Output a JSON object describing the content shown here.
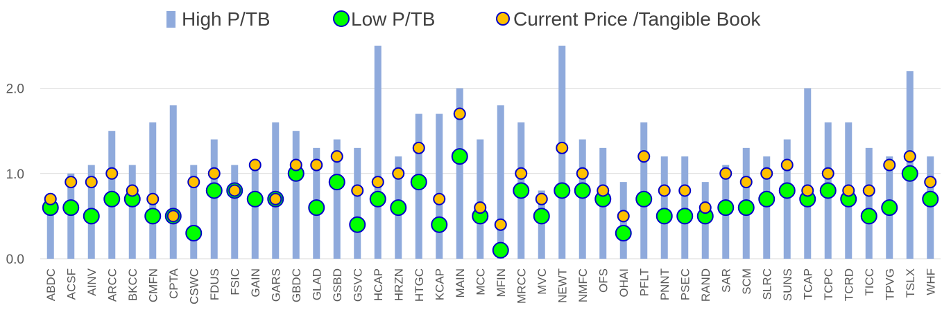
{
  "chart_data": {
    "type": "bar",
    "title": "",
    "xlabel": "",
    "ylabel": "",
    "ylim": [
      0,
      2.5
    ],
    "yticks": [
      "0.0",
      "1.0",
      "2.0"
    ],
    "grid": true,
    "legend": "top",
    "colors": {
      "high_bar": "#8faadc",
      "low_marker": "#00ff00",
      "low_marker_edge": "#0000c8",
      "current_marker": "#ffc000",
      "current_marker_edge": "#0000c8",
      "grid": "#d9d9d9"
    },
    "categories": [
      "ABDC",
      "ACSF",
      "AINV",
      "ARCC",
      "BKCC",
      "CMFN",
      "CPTA",
      "CSWC",
      "FDUS",
      "FSIC",
      "GAIN",
      "GARS",
      "GBDC",
      "GLAD",
      "GSBD",
      "GSVC",
      "HCAP",
      "HRZN",
      "HTGC",
      "KCAP",
      "MAIN",
      "MCC",
      "MFIN",
      "MRCC",
      "MVC",
      "NEWT",
      "NMFC",
      "OFS",
      "OHAI",
      "PFLT",
      "PNNT",
      "PSEC",
      "RAND",
      "SAR",
      "SCM",
      "SLRC",
      "SUNS",
      "TCAP",
      "TCPC",
      "TCRD",
      "TICC",
      "TPVG",
      "TSLX",
      "WHF"
    ],
    "series": [
      {
        "name": "High P/TB",
        "kind": "bar",
        "values": [
          0.7,
          1.0,
          1.1,
          1.5,
          1.1,
          1.6,
          1.8,
          1.1,
          1.4,
          1.1,
          1.1,
          1.6,
          1.5,
          1.3,
          1.4,
          1.3,
          2.5,
          1.2,
          1.7,
          1.7,
          2.0,
          1.4,
          1.8,
          1.6,
          0.8,
          2.5,
          1.4,
          1.3,
          0.9,
          1.6,
          1.2,
          1.2,
          0.9,
          1.1,
          1.3,
          1.2,
          1.4,
          2.0,
          1.6,
          1.6,
          1.3,
          1.2,
          2.2,
          1.2
        ]
      },
      {
        "name": "Low P/TB",
        "kind": "marker",
        "values": [
          0.6,
          0.6,
          0.5,
          0.7,
          0.7,
          0.5,
          0.5,
          0.3,
          0.8,
          0.8,
          0.7,
          0.7,
          1.0,
          0.6,
          0.9,
          0.4,
          0.7,
          0.6,
          0.9,
          0.4,
          1.2,
          0.5,
          0.1,
          0.8,
          0.5,
          0.8,
          0.8,
          0.7,
          0.3,
          0.7,
          0.5,
          0.5,
          0.5,
          0.6,
          0.6,
          0.7,
          0.8,
          0.7,
          0.8,
          0.7,
          0.5,
          0.6,
          1.0,
          0.7
        ]
      },
      {
        "name": "Current Price /Tangible Book",
        "kind": "marker",
        "values": [
          0.7,
          0.9,
          0.9,
          1.0,
          0.8,
          0.7,
          0.5,
          0.9,
          1.0,
          0.8,
          1.1,
          0.7,
          1.1,
          1.1,
          1.2,
          0.8,
          0.9,
          1.0,
          1.3,
          0.7,
          1.7,
          0.6,
          0.4,
          1.0,
          0.7,
          1.3,
          1.0,
          0.8,
          0.5,
          1.2,
          0.8,
          0.8,
          0.6,
          1.0,
          0.9,
          1.0,
          1.1,
          0.8,
          1.0,
          0.8,
          0.8,
          1.1,
          1.2,
          0.9
        ]
      }
    ]
  }
}
